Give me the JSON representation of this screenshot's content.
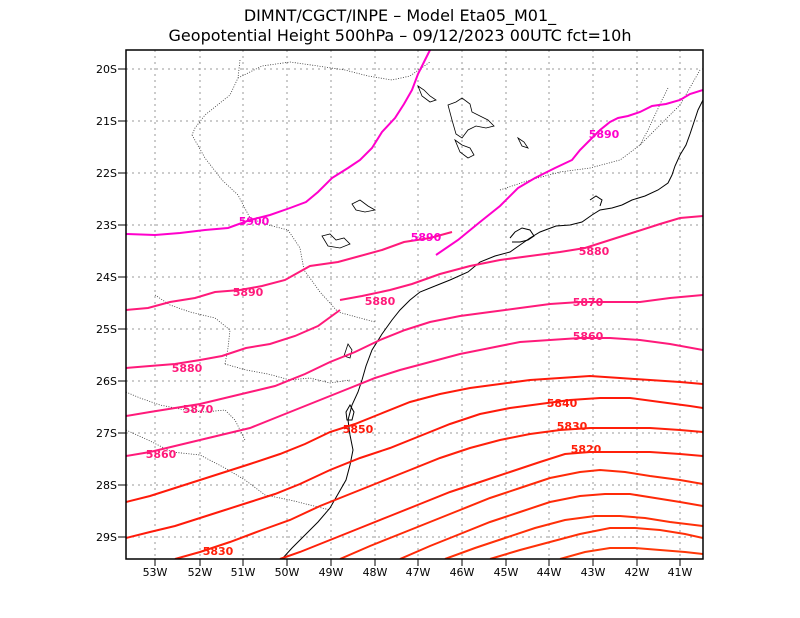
{
  "title": {
    "line1": "DIMNT/CGCT/INPE –  Model Eta05_M01_",
    "line2": "Geopotential Height 500hPa –  09/12/2023 00UTC fct=10h"
  },
  "lat_labels": [
    "20S",
    "21S",
    "22S",
    "23S",
    "24S",
    "25S",
    "26S",
    "27S",
    "28S",
    "29S"
  ],
  "lon_labels": [
    "53W",
    "52W",
    "51W",
    "50W",
    "49W",
    "48W",
    "47W",
    "46W",
    "45W",
    "44W",
    "43W",
    "42W",
    "41W"
  ],
  "contour_labels": [
    {
      "text": "5900"
    },
    {
      "text": "5890"
    },
    {
      "text": "5890"
    },
    {
      "text": "5890"
    },
    {
      "text": "5880"
    },
    {
      "text": "5880"
    },
    {
      "text": "5880"
    },
    {
      "text": "5870"
    },
    {
      "text": "5870"
    },
    {
      "text": "5860"
    },
    {
      "text": "5860"
    },
    {
      "text": "5850"
    },
    {
      "text": "5840"
    },
    {
      "text": "5830"
    },
    {
      "text": "5820"
    },
    {
      "text": "5830"
    }
  ],
  "colors": {
    "contour_pink": "#ff1a7a",
    "contour_magenta": "#ff00cc",
    "contour_red": "#ff2a10",
    "border": "#000000",
    "grid": "#999999"
  }
}
